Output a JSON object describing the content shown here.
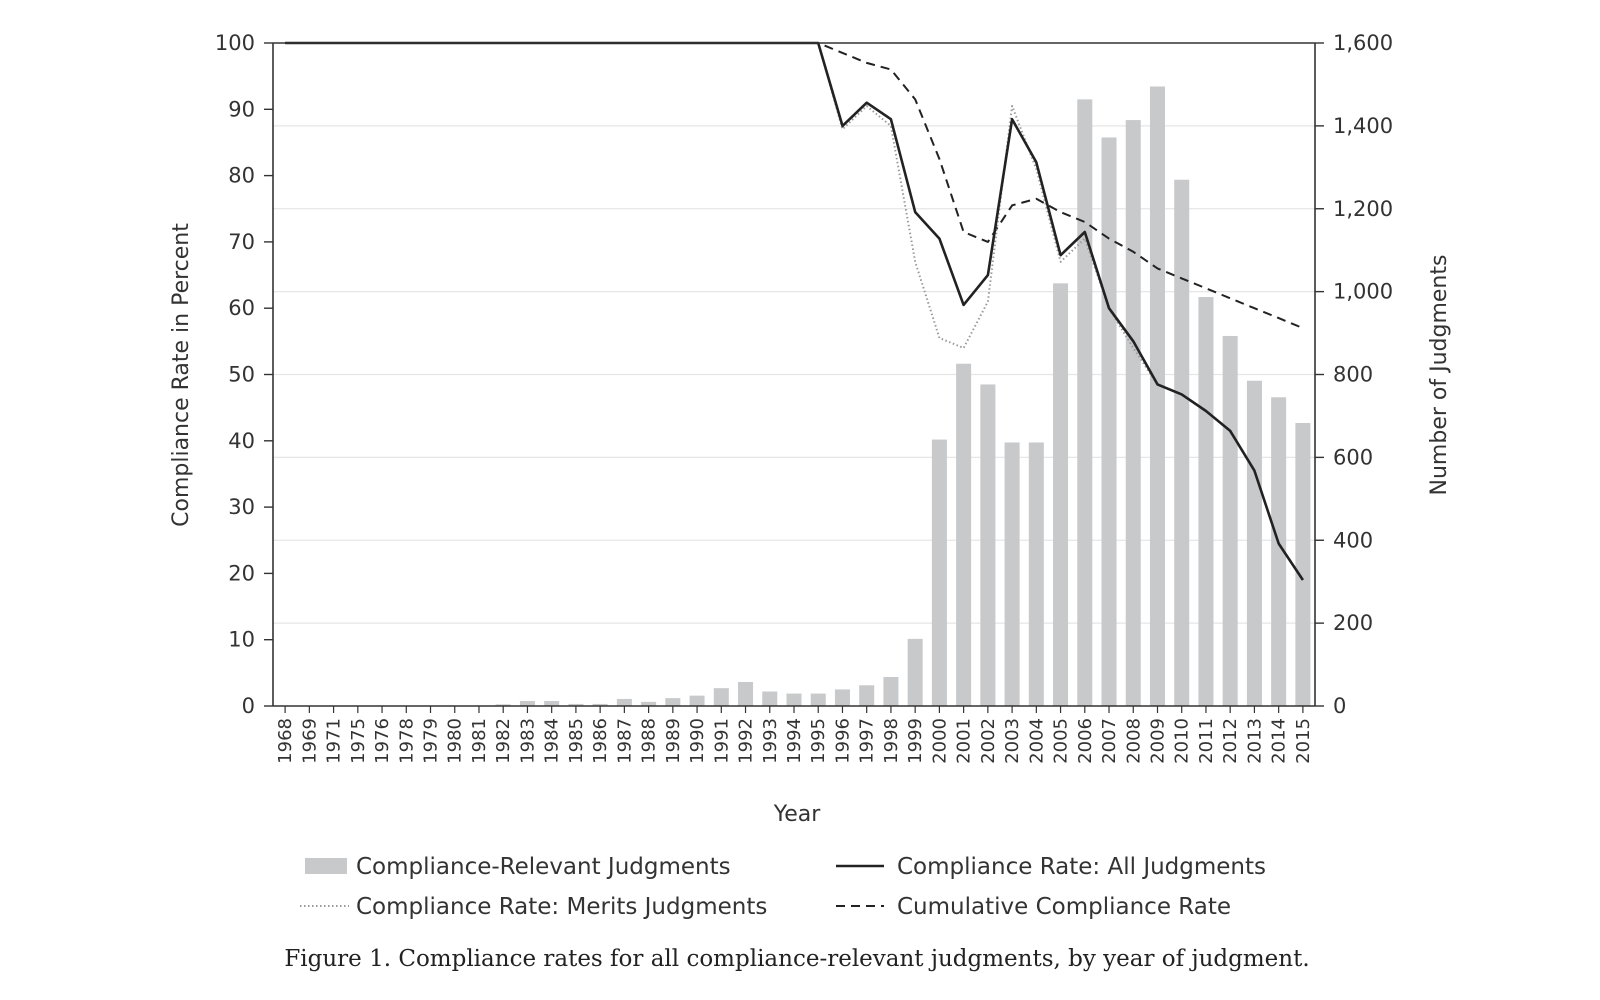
{
  "caption": "Figure 1. Compliance rates for all compliance-relevant judgments, by year of judgment.",
  "colors": {
    "bars": "#c8c9cb",
    "all_line": "#222222",
    "merits_line": "#9a9a9a",
    "cumulative_line": "#222222",
    "axis": "#333333",
    "grid": "#e6e6e6"
  },
  "chart_data": {
    "type": "bar",
    "categories": [
      "1968",
      "1969",
      "1971",
      "1975",
      "1976",
      "1978",
      "1979",
      "1980",
      "1981",
      "1982",
      "1983",
      "1984",
      "1985",
      "1986",
      "1987",
      "1988",
      "1989",
      "1990",
      "1991",
      "1992",
      "1993",
      "1994",
      "1995",
      "1996",
      "1997",
      "1998",
      "1999",
      "2000",
      "2001",
      "2002",
      "2003",
      "2004",
      "2005",
      "2006",
      "2007",
      "2008",
      "2009",
      "2010",
      "2011",
      "2012",
      "2013",
      "2014",
      "2015"
    ],
    "xlabel": "Year",
    "ylabel": "Compliance Rate in Percent",
    "y2label": "Number of Judgments",
    "ylim": [
      0,
      100
    ],
    "y2lim": [
      0,
      1600
    ],
    "yticks": [
      "0",
      "10",
      "20",
      "30",
      "40",
      "50",
      "60",
      "70",
      "80",
      "90",
      "100"
    ],
    "y2ticks": [
      "0",
      "200",
      "400",
      "600",
      "800",
      "1,000",
      "1,200",
      "1,400",
      "1,600"
    ],
    "grid": "horizontal at right-axis ticks",
    "legend_position": "bottom",
    "series": [
      {
        "name": "Compliance-Relevant Judgments",
        "kind": "bar",
        "axis": "right",
        "values": [
          0,
          0,
          0,
          0,
          0,
          0,
          0,
          0,
          0,
          4,
          12,
          12,
          5,
          5,
          17,
          10,
          19,
          25,
          43,
          58,
          35,
          30,
          30,
          40,
          50,
          70,
          162,
          643,
          826,
          776,
          636,
          636,
          1020,
          1464,
          1372,
          1414,
          1495,
          1270,
          987,
          893,
          785,
          745,
          683
        ]
      },
      {
        "name": "Compliance Rate: All Judgments",
        "kind": "line",
        "axis": "left",
        "style": "solid",
        "values": [
          100,
          100,
          100,
          100,
          100,
          100,
          100,
          100,
          100,
          100,
          100,
          100,
          100,
          100,
          100,
          100,
          100,
          100,
          100,
          100,
          100,
          100,
          100,
          87.5,
          91,
          88.5,
          74.5,
          70.5,
          60.5,
          65,
          88.5,
          82,
          68,
          71.5,
          60,
          55,
          48.5,
          47,
          44.5,
          41.5,
          35.5,
          24.5,
          19
        ]
      },
      {
        "name": "Compliance Rate: Merits Judgments",
        "kind": "line",
        "axis": "left",
        "style": "dotted",
        "values": [
          100,
          100,
          100,
          100,
          100,
          100,
          100,
          100,
          100,
          100,
          100,
          100,
          100,
          100,
          100,
          100,
          100,
          100,
          100,
          100,
          100,
          100,
          100,
          87,
          90.5,
          87.5,
          67,
          55.5,
          54,
          61,
          90.5,
          81,
          67,
          70.5,
          60,
          54,
          48.5,
          47,
          44.5,
          41.5,
          35.5,
          24.5,
          19
        ]
      },
      {
        "name": "Cumulative Compliance Rate",
        "kind": "line",
        "axis": "left",
        "style": "dashed",
        "values": [
          100,
          100,
          100,
          100,
          100,
          100,
          100,
          100,
          100,
          100,
          100,
          100,
          100,
          100,
          100,
          100,
          100,
          100,
          100,
          100,
          100,
          100,
          100,
          98.5,
          97,
          96,
          91.5,
          82.5,
          71.5,
          70,
          75.5,
          76.5,
          74.5,
          73,
          70.5,
          68.5,
          66,
          64.5,
          63,
          61.5,
          60,
          58.5,
          57
        ]
      }
    ]
  }
}
